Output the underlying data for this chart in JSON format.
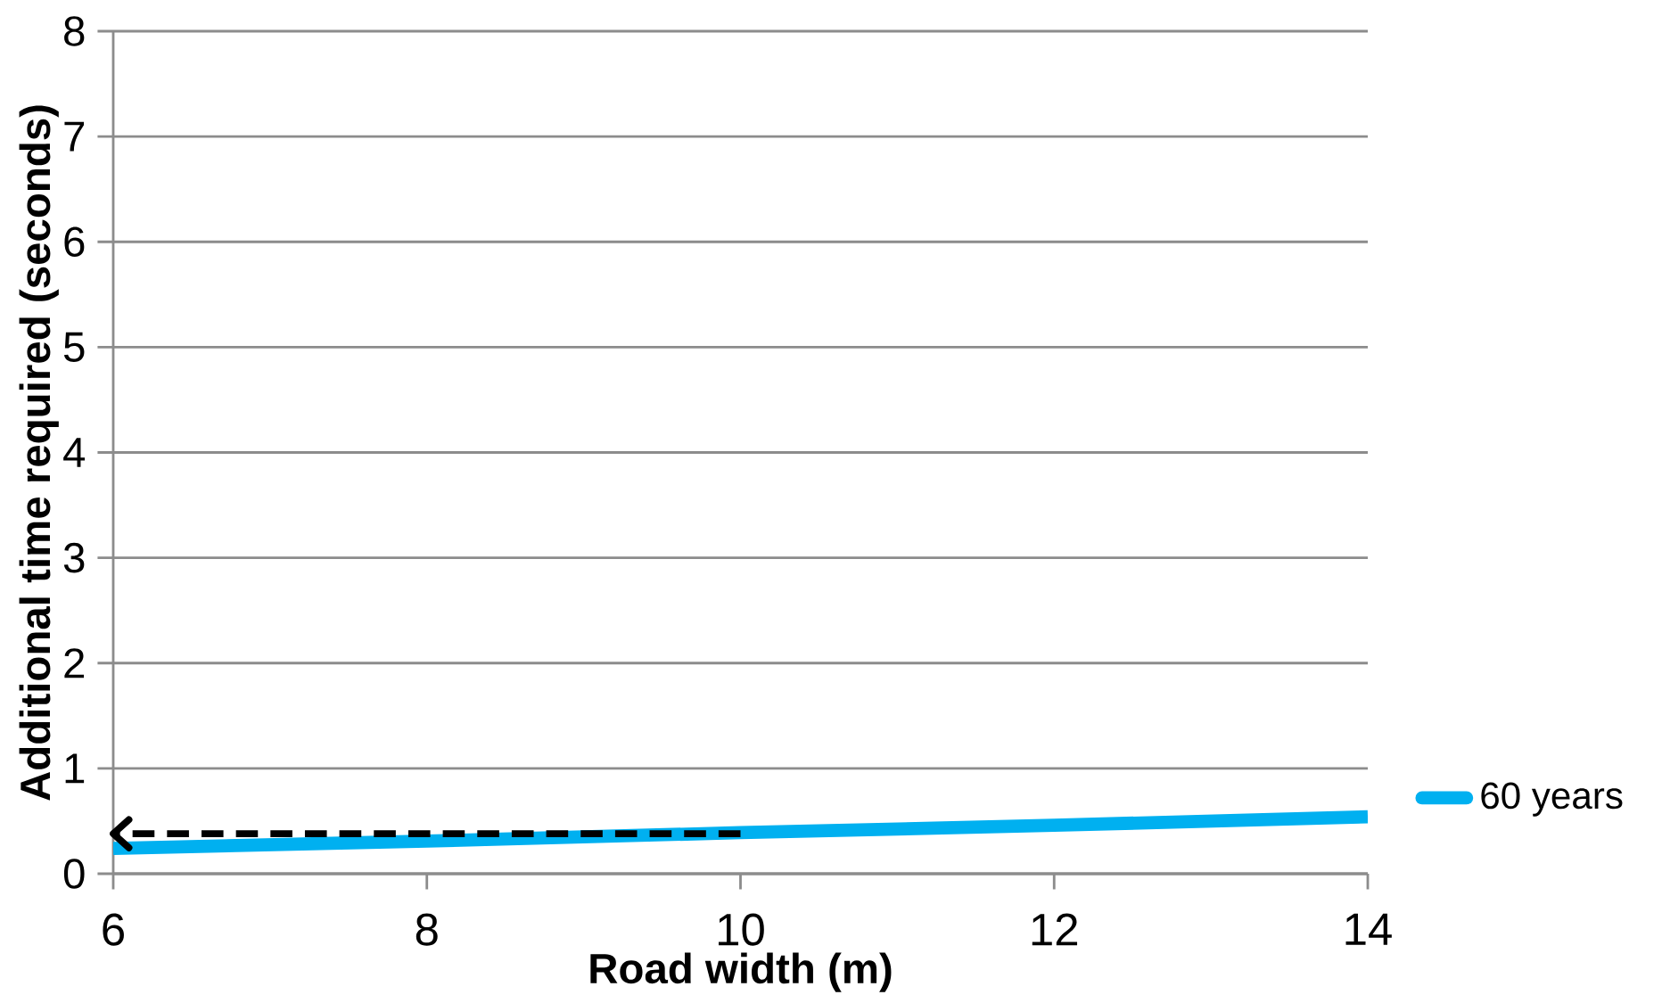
{
  "chart_data": {
    "type": "line",
    "xlabel": "Road width (m)",
    "ylabel": "Additional time required (seconds)",
    "x": [
      6,
      8,
      10,
      12,
      14
    ],
    "series": [
      {
        "name": "60 years",
        "color": "#00b0f0",
        "values": [
          0.24,
          0.31,
          0.39,
          0.46,
          0.54
        ]
      },
      {
        "x": [
          10,
          6
        ],
        "color": "#000000",
        "line_style": "dashed",
        "values": [
          0.38,
          0.38
        ]
      }
    ],
    "xlim": [
      6,
      14
    ],
    "xticks": [
      6,
      8,
      10,
      12,
      14
    ],
    "ylim": [
      0,
      8
    ],
    "yticks": [
      0,
      1,
      2,
      3,
      4,
      5,
      6,
      7,
      8
    ],
    "grid": "y",
    "legend": "right",
    "line_style": "solid"
  }
}
